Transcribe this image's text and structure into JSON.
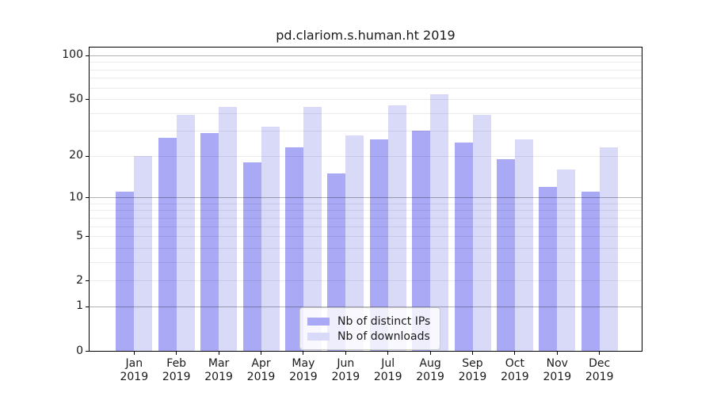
{
  "chart_data": {
    "type": "bar",
    "title": "pd.clariom.s.human.ht 2019",
    "categories": [
      "Jan",
      "Feb",
      "Mar",
      "Apr",
      "May",
      "Jun",
      "Jul",
      "Aug",
      "Sep",
      "Oct",
      "Nov",
      "Dec"
    ],
    "year_label": "2019",
    "series": [
      {
        "name": "Nb of distinct IPs",
        "color": "#a9a9f5",
        "values": [
          11,
          27,
          29,
          18,
          23,
          15,
          26,
          30,
          25,
          19,
          12,
          11
        ]
      },
      {
        "name": "Nb of downloads",
        "color": "#d9d9f8",
        "values": [
          20,
          39,
          44,
          32,
          44,
          28,
          45,
          54,
          39,
          26,
          16,
          23
        ]
      }
    ],
    "yscale": "log10(value+1)",
    "ylim": [
      0,
      113
    ],
    "ytick_values": [
      0,
      1,
      2,
      5,
      10,
      20,
      50,
      100
    ],
    "ytick_labels": [
      "0",
      "1",
      "2",
      "5",
      "10",
      "20",
      "50",
      "100"
    ],
    "grid_major": [
      1,
      10,
      100
    ],
    "grid_minor": [
      2,
      3,
      4,
      5,
      6,
      7,
      8,
      9,
      20,
      30,
      40,
      50,
      60,
      70,
      80,
      90
    ],
    "legend_position": "lower center",
    "xlabel": "",
    "ylabel": ""
  },
  "colors": {
    "background": "#ffffff",
    "axis": "#000000",
    "grid_major": "rgba(0,0,0,0.30)",
    "grid_minor": "rgba(0,0,0,0.08)",
    "legend_border": "#cccccc",
    "legend_background": "rgba(255,255,255,0.8)"
  }
}
